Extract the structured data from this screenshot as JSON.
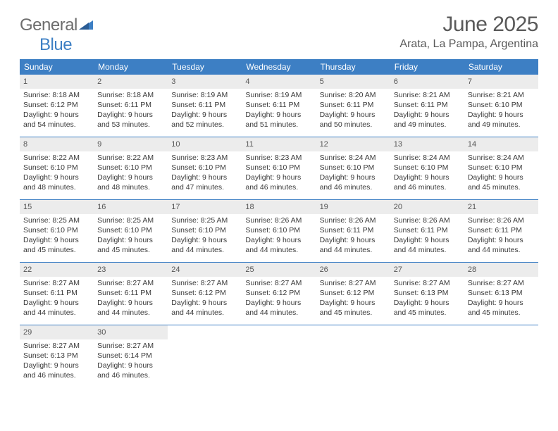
{
  "logo": {
    "part1": "General",
    "part2": "Blue"
  },
  "title": "June 2025",
  "location": "Arata, La Pampa, Argentina",
  "colors": {
    "header_bg": "#3d7fc4",
    "daynum_bg": "#ececec",
    "border": "#3d7fc4",
    "text": "#3a3a3a",
    "title": "#595959"
  },
  "typography": {
    "title_fontsize": 30,
    "location_fontsize": 16,
    "dow_fontsize": 12,
    "day_fontsize": 10.5
  },
  "days_of_week": [
    "Sunday",
    "Monday",
    "Tuesday",
    "Wednesday",
    "Thursday",
    "Friday",
    "Saturday"
  ],
  "weeks": [
    [
      {
        "n": "1",
        "sunrise": "8:18 AM",
        "sunset": "6:12 PM",
        "dl1": "Daylight: 9 hours",
        "dl2": "and 54 minutes."
      },
      {
        "n": "2",
        "sunrise": "8:18 AM",
        "sunset": "6:11 PM",
        "dl1": "Daylight: 9 hours",
        "dl2": "and 53 minutes."
      },
      {
        "n": "3",
        "sunrise": "8:19 AM",
        "sunset": "6:11 PM",
        "dl1": "Daylight: 9 hours",
        "dl2": "and 52 minutes."
      },
      {
        "n": "4",
        "sunrise": "8:19 AM",
        "sunset": "6:11 PM",
        "dl1": "Daylight: 9 hours",
        "dl2": "and 51 minutes."
      },
      {
        "n": "5",
        "sunrise": "8:20 AM",
        "sunset": "6:11 PM",
        "dl1": "Daylight: 9 hours",
        "dl2": "and 50 minutes."
      },
      {
        "n": "6",
        "sunrise": "8:21 AM",
        "sunset": "6:11 PM",
        "dl1": "Daylight: 9 hours",
        "dl2": "and 49 minutes."
      },
      {
        "n": "7",
        "sunrise": "8:21 AM",
        "sunset": "6:10 PM",
        "dl1": "Daylight: 9 hours",
        "dl2": "and 49 minutes."
      }
    ],
    [
      {
        "n": "8",
        "sunrise": "8:22 AM",
        "sunset": "6:10 PM",
        "dl1": "Daylight: 9 hours",
        "dl2": "and 48 minutes."
      },
      {
        "n": "9",
        "sunrise": "8:22 AM",
        "sunset": "6:10 PM",
        "dl1": "Daylight: 9 hours",
        "dl2": "and 48 minutes."
      },
      {
        "n": "10",
        "sunrise": "8:23 AM",
        "sunset": "6:10 PM",
        "dl1": "Daylight: 9 hours",
        "dl2": "and 47 minutes."
      },
      {
        "n": "11",
        "sunrise": "8:23 AM",
        "sunset": "6:10 PM",
        "dl1": "Daylight: 9 hours",
        "dl2": "and 46 minutes."
      },
      {
        "n": "12",
        "sunrise": "8:24 AM",
        "sunset": "6:10 PM",
        "dl1": "Daylight: 9 hours",
        "dl2": "and 46 minutes."
      },
      {
        "n": "13",
        "sunrise": "8:24 AM",
        "sunset": "6:10 PM",
        "dl1": "Daylight: 9 hours",
        "dl2": "and 46 minutes."
      },
      {
        "n": "14",
        "sunrise": "8:24 AM",
        "sunset": "6:10 PM",
        "dl1": "Daylight: 9 hours",
        "dl2": "and 45 minutes."
      }
    ],
    [
      {
        "n": "15",
        "sunrise": "8:25 AM",
        "sunset": "6:10 PM",
        "dl1": "Daylight: 9 hours",
        "dl2": "and 45 minutes."
      },
      {
        "n": "16",
        "sunrise": "8:25 AM",
        "sunset": "6:10 PM",
        "dl1": "Daylight: 9 hours",
        "dl2": "and 45 minutes."
      },
      {
        "n": "17",
        "sunrise": "8:25 AM",
        "sunset": "6:10 PM",
        "dl1": "Daylight: 9 hours",
        "dl2": "and 44 minutes."
      },
      {
        "n": "18",
        "sunrise": "8:26 AM",
        "sunset": "6:10 PM",
        "dl1": "Daylight: 9 hours",
        "dl2": "and 44 minutes."
      },
      {
        "n": "19",
        "sunrise": "8:26 AM",
        "sunset": "6:11 PM",
        "dl1": "Daylight: 9 hours",
        "dl2": "and 44 minutes."
      },
      {
        "n": "20",
        "sunrise": "8:26 AM",
        "sunset": "6:11 PM",
        "dl1": "Daylight: 9 hours",
        "dl2": "and 44 minutes."
      },
      {
        "n": "21",
        "sunrise": "8:26 AM",
        "sunset": "6:11 PM",
        "dl1": "Daylight: 9 hours",
        "dl2": "and 44 minutes."
      }
    ],
    [
      {
        "n": "22",
        "sunrise": "8:27 AM",
        "sunset": "6:11 PM",
        "dl1": "Daylight: 9 hours",
        "dl2": "and 44 minutes."
      },
      {
        "n": "23",
        "sunrise": "8:27 AM",
        "sunset": "6:11 PM",
        "dl1": "Daylight: 9 hours",
        "dl2": "and 44 minutes."
      },
      {
        "n": "24",
        "sunrise": "8:27 AM",
        "sunset": "6:12 PM",
        "dl1": "Daylight: 9 hours",
        "dl2": "and 44 minutes."
      },
      {
        "n": "25",
        "sunrise": "8:27 AM",
        "sunset": "6:12 PM",
        "dl1": "Daylight: 9 hours",
        "dl2": "and 44 minutes."
      },
      {
        "n": "26",
        "sunrise": "8:27 AM",
        "sunset": "6:12 PM",
        "dl1": "Daylight: 9 hours",
        "dl2": "and 45 minutes."
      },
      {
        "n": "27",
        "sunrise": "8:27 AM",
        "sunset": "6:13 PM",
        "dl1": "Daylight: 9 hours",
        "dl2": "and 45 minutes."
      },
      {
        "n": "28",
        "sunrise": "8:27 AM",
        "sunset": "6:13 PM",
        "dl1": "Daylight: 9 hours",
        "dl2": "and 45 minutes."
      }
    ],
    [
      {
        "n": "29",
        "sunrise": "8:27 AM",
        "sunset": "6:13 PM",
        "dl1": "Daylight: 9 hours",
        "dl2": "and 46 minutes."
      },
      {
        "n": "30",
        "sunrise": "8:27 AM",
        "sunset": "6:14 PM",
        "dl1": "Daylight: 9 hours",
        "dl2": "and 46 minutes."
      },
      null,
      null,
      null,
      null,
      null
    ]
  ]
}
